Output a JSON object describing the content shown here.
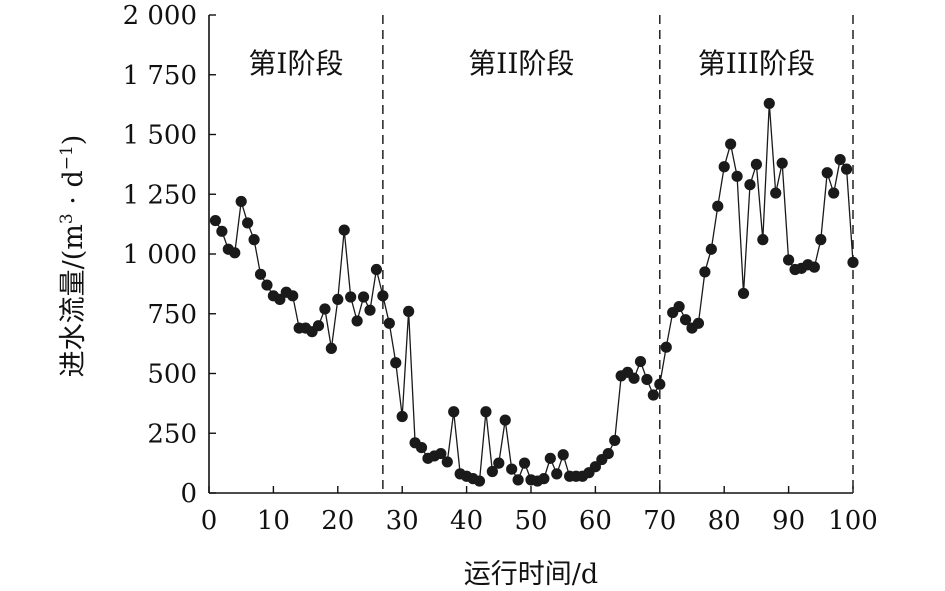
{
  "chart_data": {
    "type": "line",
    "title": "",
    "xlabel": "运行时间/d",
    "ylabel": "进水流量/(m³ · d⁻¹)",
    "ylabel_parts": [
      "进水流量/(m",
      "3",
      " · d",
      "−1",
      ")"
    ],
    "xlim": [
      0,
      100
    ],
    "ylim": [
      0,
      2000
    ],
    "xticks": [
      0,
      10,
      20,
      30,
      40,
      50,
      60,
      70,
      80,
      90,
      100
    ],
    "xtick_labels": [
      "0",
      "10",
      "20",
      "30",
      "40",
      "50",
      "60",
      "70",
      "80",
      "90",
      "100"
    ],
    "yticks": [
      0,
      250,
      500,
      750,
      1000,
      1250,
      1500,
      1750,
      2000
    ],
    "ytick_labels": [
      "0",
      "250",
      "500",
      "750",
      "1 000",
      "1 250",
      "1 500",
      "1 750",
      "2 000"
    ],
    "grid": false,
    "legend": "none",
    "marker": "filled-circle",
    "line_color": "#1a1a1a",
    "stage_dividers": [
      27,
      70,
      100
    ],
    "stages": [
      {
        "label": "第I阶段",
        "x": 13.5
      },
      {
        "label": "第II阶段",
        "x": 48.5
      },
      {
        "label": "第III阶段",
        "x": 85
      }
    ],
    "x": [
      1,
      2,
      3,
      4,
      5,
      6,
      7,
      8,
      9,
      10,
      11,
      12,
      13,
      14,
      15,
      16,
      17,
      18,
      19,
      20,
      21,
      22,
      23,
      24,
      25,
      26,
      27,
      28,
      29,
      30,
      31,
      32,
      33,
      34,
      35,
      36,
      37,
      38,
      39,
      40,
      41,
      42,
      43,
      44,
      45,
      46,
      47,
      48,
      49,
      50,
      51,
      52,
      53,
      54,
      55,
      56,
      57,
      58,
      59,
      60,
      61,
      62,
      63,
      64,
      65,
      66,
      67,
      68,
      69,
      70,
      71,
      72,
      73,
      74,
      75,
      76,
      77,
      78,
      79,
      80,
      81,
      82,
      83,
      84,
      85,
      86,
      87,
      88,
      89,
      90,
      91,
      92,
      93,
      94,
      95,
      96,
      97,
      98,
      99,
      100
    ],
    "values": [
      1140,
      1095,
      1020,
      1005,
      1220,
      1130,
      1060,
      915,
      870,
      825,
      810,
      840,
      825,
      690,
      690,
      675,
      700,
      770,
      605,
      810,
      1100,
      820,
      720,
      820,
      765,
      935,
      825,
      710,
      545,
      320,
      760,
      210,
      190,
      145,
      155,
      165,
      130,
      340,
      80,
      70,
      60,
      50,
      340,
      90,
      125,
      305,
      100,
      55,
      125,
      55,
      50,
      60,
      145,
      80,
      160,
      70,
      70,
      70,
      85,
      110,
      140,
      165,
      220,
      490,
      505,
      480,
      550,
      475,
      410,
      455,
      610,
      755,
      780,
      725,
      690,
      710,
      925,
      1020,
      1200,
      1365,
      1460,
      1325,
      835,
      1290,
      1375,
      1060,
      1630,
      1255,
      1380,
      975,
      935,
      940,
      955,
      945,
      1060,
      1340,
      1255,
      1395,
      1355,
      965
    ]
  }
}
